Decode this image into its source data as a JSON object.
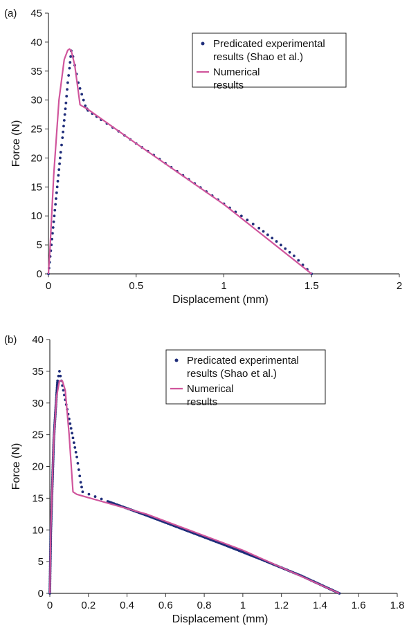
{
  "chart_data": [
    {
      "type": "line",
      "panel_label": "(a)",
      "xlabel": "Displacement (mm)",
      "ylabel": "Force (N)",
      "xlim": [
        0,
        2
      ],
      "ylim": [
        0,
        45
      ],
      "x_ticks": [
        "0",
        "0.5",
        "1",
        "1.5",
        "2"
      ],
      "y_ticks": [
        "0",
        "5",
        "10",
        "15",
        "20",
        "25",
        "30",
        "35",
        "40",
        "45"
      ],
      "legend_position": "top-right",
      "series": [
        {
          "name": "Predicated experimental results (Shao et al.)",
          "style": "dotted",
          "color": "#1f2d7a",
          "x": [
            0.0,
            0.01,
            0.02,
            0.03,
            0.04,
            0.05,
            0.06,
            0.07,
            0.08,
            0.09,
            0.1,
            0.11,
            0.12,
            0.13,
            0.14,
            0.15,
            0.16,
            0.17,
            0.18,
            0.19,
            0.2,
            0.21,
            0.22,
            0.225,
            0.3,
            0.4,
            0.5,
            0.6,
            0.7,
            0.8,
            0.9,
            1.0,
            1.1,
            1.2,
            1.3,
            1.4,
            1.5
          ],
          "y": [
            0.0,
            3.0,
            6.0,
            9.0,
            12.0,
            15.0,
            18.0,
            21.0,
            23.5,
            26.5,
            29.5,
            33.0,
            35.5,
            38.5,
            37.5,
            36.0,
            34.5,
            33.0,
            32.0,
            31.0,
            30.0,
            29.0,
            28.5,
            28.2,
            26.6,
            24.6,
            22.5,
            20.5,
            18.4,
            16.3,
            14.2,
            12.1,
            10.0,
            7.9,
            5.6,
            3.1,
            0.0
          ]
        },
        {
          "name": "Numerical results",
          "style": "solid",
          "color": "#d0559c",
          "x": [
            0.0,
            0.01,
            0.03,
            0.06,
            0.09,
            0.11,
            0.12,
            0.13,
            0.15,
            0.17,
            0.18,
            0.19,
            0.22,
            0.5,
            1.0,
            1.5
          ],
          "y": [
            0.0,
            5.0,
            17.0,
            30.0,
            37.0,
            38.6,
            38.8,
            38.5,
            36.0,
            31.5,
            29.2,
            29.0,
            28.5,
            22.5,
            12.0,
            0.0
          ]
        }
      ]
    },
    {
      "type": "line",
      "panel_label": "(b)",
      "xlabel": "Displacement (mm)",
      "ylabel": "Force (N)",
      "xlim": [
        0,
        1.8
      ],
      "ylim": [
        0,
        40
      ],
      "x_ticks": [
        "0",
        "0.2",
        "0.4",
        "0.6",
        "0.8",
        "1",
        "1.2",
        "1.4",
        "1.6",
        "1.8"
      ],
      "y_ticks": [
        "0",
        "5",
        "10",
        "15",
        "20",
        "25",
        "30",
        "35",
        "40"
      ],
      "legend_position": "top-right",
      "series": [
        {
          "name": "Predicated experimental results (Shao et al.)",
          "style": "dotted",
          "color": "#1f2d7a",
          "x": [
            0.0,
            0.005,
            0.01,
            0.015,
            0.02,
            0.03,
            0.04,
            0.05,
            0.06,
            0.07,
            0.08,
            0.09,
            0.1,
            0.11,
            0.12,
            0.13,
            0.14,
            0.15,
            0.16,
            0.17,
            0.3,
            0.5,
            0.7,
            0.9,
            1.1,
            1.3,
            1.5
          ],
          "y": [
            0.0,
            9.5,
            14.5,
            19.0,
            24.0,
            29.0,
            33.5,
            35.0,
            33.5,
            32.0,
            30.5,
            29.0,
            27.5,
            26.0,
            24.5,
            23.0,
            21.5,
            19.5,
            17.5,
            16.0,
            14.5,
            12.3,
            10.0,
            7.7,
            5.3,
            2.8,
            0.0
          ]
        },
        {
          "name": "Numerical results",
          "style": "solid",
          "color": "#d0559c",
          "x": [
            0.0,
            0.005,
            0.02,
            0.035,
            0.05,
            0.065,
            0.08,
            0.1,
            0.12,
            0.14,
            0.5,
            1.0,
            1.5
          ],
          "y": [
            0.0,
            10.0,
            24.0,
            31.0,
            33.5,
            33.5,
            32.0,
            25.0,
            16.0,
            15.6,
            12.5,
            6.8,
            0.0
          ]
        }
      ]
    }
  ]
}
